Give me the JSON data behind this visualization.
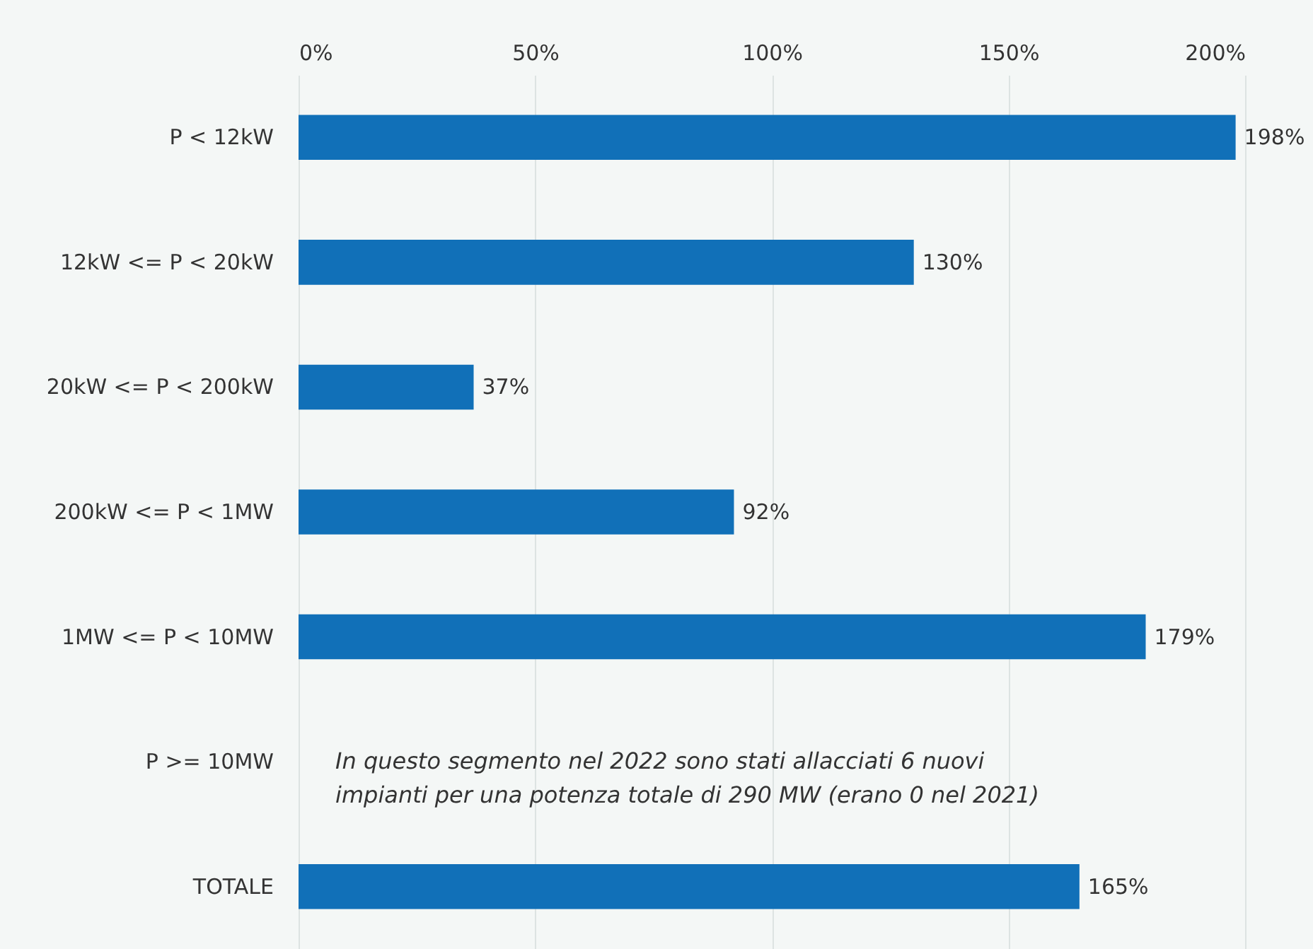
{
  "chart_data": {
    "type": "bar",
    "orientation": "horizontal",
    "categories": [
      "P < 12kW",
      "12kW <= P < 20kW",
      "20kW <= P < 200kW",
      "200kW <= P < 1MW",
      "1MW <= P < 10MW",
      "P >= 10MW",
      "TOTALE"
    ],
    "values": [
      198,
      130,
      37,
      92,
      179,
      null,
      165
    ],
    "value_labels": [
      "198%",
      "130%",
      "37%",
      "92%",
      "179%",
      null,
      "165%"
    ],
    "color": "#1170b8",
    "xlim": [
      0,
      200
    ],
    "xticks": [
      {
        "value": 0,
        "label": "0%"
      },
      {
        "value": 50,
        "label": "50%"
      },
      {
        "value": 100,
        "label": "100%"
      },
      {
        "value": 150,
        "label": "150%"
      },
      {
        "value": 200,
        "label": "200%"
      }
    ],
    "grid": "x",
    "annotations": [
      "In questo segmento nel 2022 sono stati allacciati 6 nuovi\nimpianti per una potenza totale di 290 MW (erano 0 nel 2021)"
    ]
  }
}
